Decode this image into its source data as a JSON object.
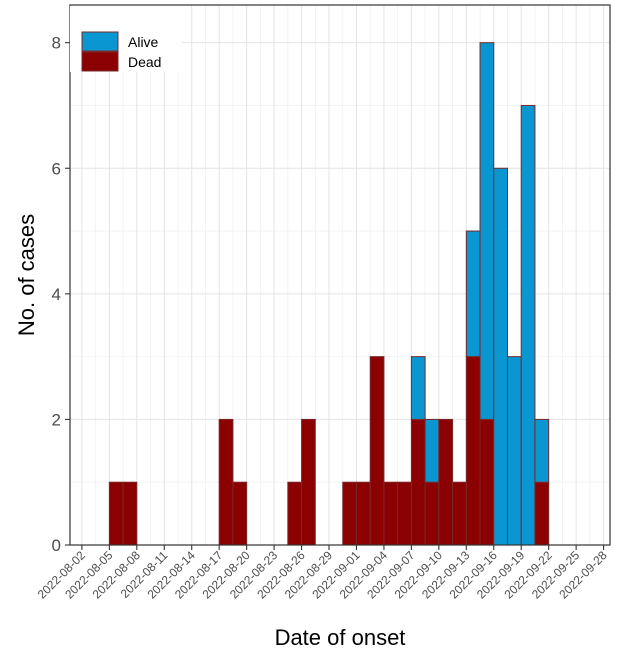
{
  "chart_data": {
    "type": "bar",
    "stacked": true,
    "xlabel": "Date of onset",
    "ylabel": "No. of cases",
    "ylim": [
      0,
      8.6
    ],
    "yticks": [
      0,
      2,
      4,
      6,
      8
    ],
    "x_tick_labels": [
      "2022-08-02",
      "2022-08-05",
      "2022-08-08",
      "2022-08-11",
      "2022-08-14",
      "2022-08-17",
      "2022-08-20",
      "2022-08-23",
      "2022-08-26",
      "2022-08-29",
      "2022-09-01",
      "2022-09-04",
      "2022-09-07",
      "2022-09-10",
      "2022-09-13",
      "2022-09-16",
      "2022-09-19",
      "2022-09-22",
      "2022-09-25",
      "2022-09-28"
    ],
    "xlim": [
      "2022-08-02",
      "2022-09-28"
    ],
    "grid": true,
    "legend_position": "top-left",
    "series": [
      {
        "name": "Alive",
        "color": "#0a96d0",
        "values": [
          0,
          0,
          0,
          0,
          0,
          0,
          0,
          0,
          0,
          0,
          0,
          0,
          0,
          0,
          0,
          0,
          0,
          0,
          0,
          0,
          0,
          0,
          0,
          0,
          1,
          1,
          0,
          0,
          2,
          6,
          6,
          3,
          7,
          1
        ]
      },
      {
        "name": "Dead",
        "color": "#8b0000",
        "values": [
          1,
          1,
          0,
          0,
          0,
          0,
          0,
          0,
          2,
          1,
          0,
          0,
          1,
          2,
          0,
          1,
          1,
          3,
          1,
          1,
          1,
          2,
          1,
          2,
          2,
          1,
          2,
          1,
          3,
          2,
          0,
          0,
          0,
          1
        ]
      }
    ],
    "bins": [
      [
        "2022-08-03",
        "2022-08-05"
      ],
      [
        "2022-08-05",
        "2022-08-07"
      ],
      [
        "2022-08-07",
        "2022-08-09"
      ],
      [
        "2022-08-09",
        "2022-08-11"
      ],
      [
        "2022-08-11",
        "2022-08-13"
      ],
      [
        "2022-08-13",
        "2022-08-15"
      ],
      [
        "2022-08-15",
        "2022-08-17"
      ],
      [
        "2022-08-17",
        "2022-08-19"
      ],
      [
        "2022-08-19",
        "2022-08-21"
      ],
      [
        "2022-08-21",
        "2022-08-23"
      ],
      [
        "2022-08-23",
        "2022-08-25"
      ],
      [
        "2022-08-25",
        "2022-08-27"
      ],
      [
        "2022-08-27",
        "2022-08-29"
      ],
      [
        "2022-08-29",
        "2022-08-31"
      ],
      [
        "2022-08-31",
        "2022-09-02"
      ],
      [
        "2022-09-02",
        "2022-09-04"
      ],
      [
        "2022-09-04",
        "2022-09-06"
      ],
      [
        "2022-09-06",
        "2022-09-08"
      ],
      [
        "2022-09-08",
        "2022-09-10"
      ],
      [
        "2022-09-10",
        "2022-09-12"
      ],
      [
        "2022-09-12",
        "2022-09-14"
      ],
      [
        "2022-09-14",
        "2022-09-16"
      ],
      [
        "2022-09-16",
        "2022-09-18"
      ],
      [
        "2022-09-18",
        "2022-09-20"
      ],
      [
        "2022-09-20",
        "2022-09-22"
      ],
      [
        "2022-09-22",
        "2022-09-24"
      ],
      [
        "2022-09-24",
        "2022-09-26"
      ],
      [
        "2022-09-26",
        "2022-09-28"
      ],
      [
        "2022-09-16",
        "2022-09-18"
      ],
      [
        "2022-09-18",
        "2022-09-20"
      ],
      [
        "2022-09-20",
        "2022-09-22"
      ],
      [
        "2022-09-22",
        "2022-09-24"
      ],
      [
        "2022-09-24",
        "2022-09-26"
      ],
      [
        "2022-09-26",
        "2022-09-28"
      ]
    ]
  }
}
